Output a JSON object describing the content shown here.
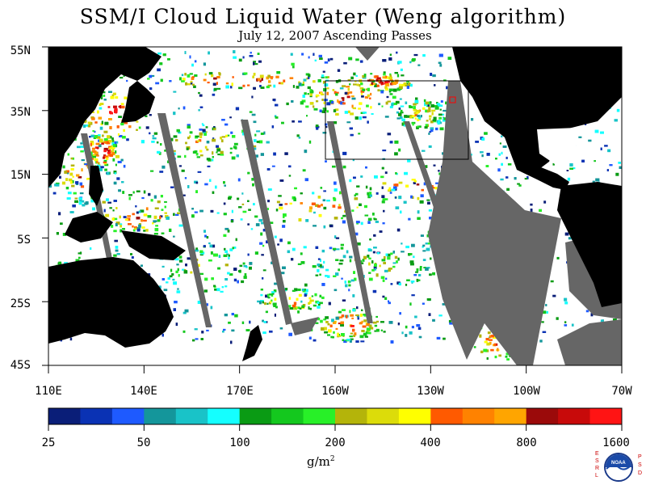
{
  "title": "SSM/I Cloud Liquid Water (Weng algorithm)",
  "subtitle": "July 12, 2007  Ascending Passes",
  "lat_labels": [
    "55N",
    "35N",
    "15N",
    "5S",
    "25S",
    "45S"
  ],
  "lon_labels": [
    "110E",
    "140E",
    "170E",
    "160W",
    "130W",
    "100W",
    "70W"
  ],
  "colorbar": {
    "colors": [
      "#0a1e78",
      "#0a32b4",
      "#1e5aff",
      "#14969b",
      "#19c3c8",
      "#14ffff",
      "#0a9b14",
      "#14c81e",
      "#28f028",
      "#b4b40a",
      "#dcdc0a",
      "#ffff00",
      "#ff5a00",
      "#ff8200",
      "#ffa500",
      "#9b0a0a",
      "#c80a0a",
      "#ff1414"
    ],
    "tick_labels": [
      "25",
      "50",
      "100",
      "200",
      "400",
      "800",
      "1600"
    ]
  },
  "unit": "g/m",
  "unit_superscript": "2",
  "logo": {
    "text": "NOAA",
    "left_letters": [
      "E",
      "S",
      "R",
      "L"
    ],
    "right_letters": [
      "P",
      "S",
      "D"
    ]
  },
  "colors": {
    "land": "#000000",
    "no_data": "#666666",
    "ocean_clear": "#ffffff"
  }
}
